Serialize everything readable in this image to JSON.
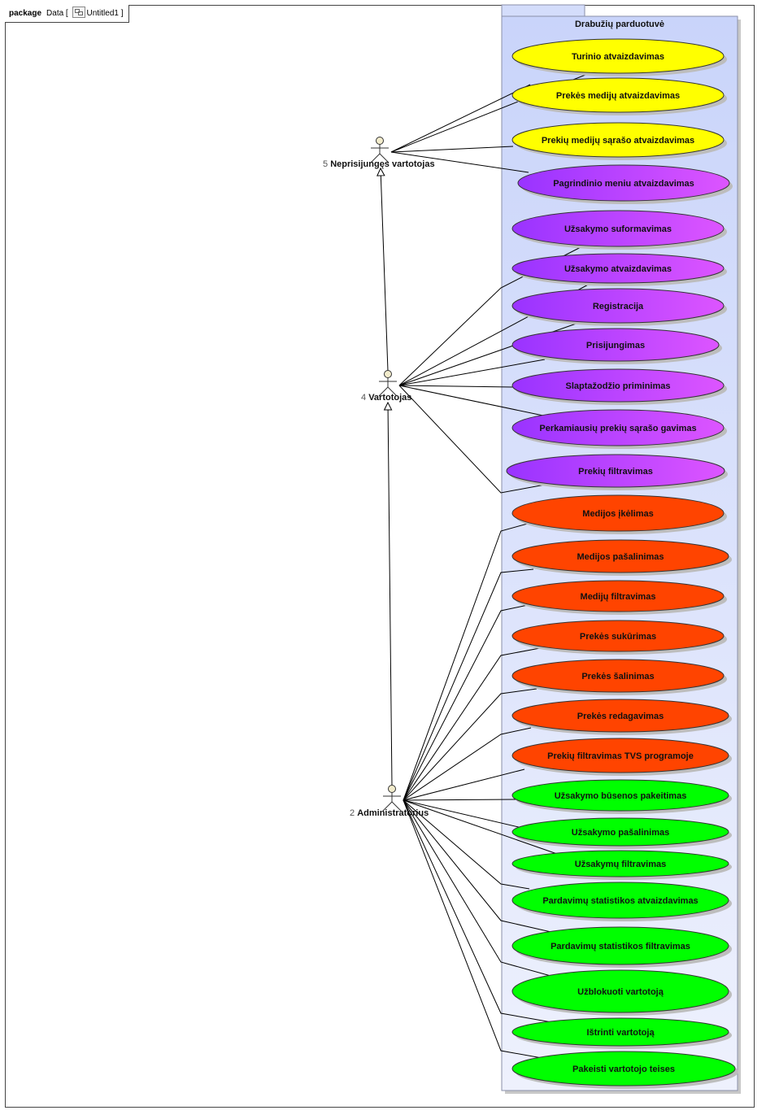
{
  "header": {
    "keyword": "package",
    "name": "Data",
    "diagram_icon": "use-case-diagram-icon",
    "diagram_name": "Untitled1"
  },
  "system": {
    "title": "Drabužių parduotuvė"
  },
  "colors": {
    "yellow": "#ffff00",
    "purple_from": "#9933ff",
    "purple_to": "#dd55ff",
    "red": "#ff4400",
    "green": "#00ff00",
    "system_bg": "#d4ddfb"
  },
  "actors": [
    {
      "id": "guest",
      "number": "5",
      "name": "Neprisijungęs vartotojas"
    },
    {
      "id": "user",
      "number": "4",
      "name": "Vartotojas"
    },
    {
      "id": "admin",
      "number": "2",
      "name": "Administratorius"
    }
  ],
  "use_cases": [
    {
      "label": "Turinio atvaizdavimas",
      "group": "yellow"
    },
    {
      "label": "Prekės medijų atvaizdavimas",
      "group": "yellow"
    },
    {
      "label": "Prekių medijų sąrašo atvaizdavimas",
      "group": "yellow"
    },
    {
      "label": "Pagrindinio meniu atvaizdavimas",
      "group": "purple"
    },
    {
      "label": "Užsakymo suformavimas",
      "group": "purple"
    },
    {
      "label": "Užsakymo atvaizdavimas",
      "group": "purple"
    },
    {
      "label": "Registracija",
      "group": "purple"
    },
    {
      "label": "Prisijungimas",
      "group": "purple"
    },
    {
      "label": "Slaptažodžio priminimas",
      "group": "purple"
    },
    {
      "label": "Perkamiausių prekių sąrašo gavimas",
      "group": "purple"
    },
    {
      "label": "Prekių filtravimas",
      "group": "purple"
    },
    {
      "label": "Medijos įkėlimas",
      "group": "red"
    },
    {
      "label": "Medijos pašalinimas",
      "group": "red"
    },
    {
      "label": "Medijų filtravimas",
      "group": "red"
    },
    {
      "label": "Prekės sukūrimas",
      "group": "red"
    },
    {
      "label": "Prekės šalinimas",
      "group": "red"
    },
    {
      "label": "Prekės redagavimas",
      "group": "red"
    },
    {
      "label": "Prekių filtravimas TVS programoje",
      "group": "red"
    },
    {
      "label": "Užsakymo būsenos pakeitimas",
      "group": "green"
    },
    {
      "label": "Užsakymo pašalinimas",
      "group": "green"
    },
    {
      "label": "Užsakymų filtravimas",
      "group": "green"
    },
    {
      "label": "Pardavimų statistikos atvaizdavimas",
      "group": "green"
    },
    {
      "label": "Pardavimų statistikos filtravimas",
      "group": "green"
    },
    {
      "label": "Užblokuoti vartotoją",
      "group": "green"
    },
    {
      "label": "Ištrinti vartotoją",
      "group": "green"
    },
    {
      "label": "Pakeisti vartotojo teises",
      "group": "green"
    }
  ],
  "associations": [
    {
      "actor": "guest",
      "use_case": 0
    },
    {
      "actor": "guest",
      "use_case": 1
    },
    {
      "actor": "guest",
      "use_case": 2
    },
    {
      "actor": "guest",
      "use_case": 3
    },
    {
      "actor": "user",
      "use_case": 4
    },
    {
      "actor": "user",
      "use_case": 5
    },
    {
      "actor": "user",
      "use_case": 6
    },
    {
      "actor": "user",
      "use_case": 7
    },
    {
      "actor": "user",
      "use_case": 8
    },
    {
      "actor": "user",
      "use_case": 9
    },
    {
      "actor": "user",
      "use_case": 10
    },
    {
      "actor": "admin",
      "use_case": 11
    },
    {
      "actor": "admin",
      "use_case": 12
    },
    {
      "actor": "admin",
      "use_case": 13
    },
    {
      "actor": "admin",
      "use_case": 14
    },
    {
      "actor": "admin",
      "use_case": 15
    },
    {
      "actor": "admin",
      "use_case": 16
    },
    {
      "actor": "admin",
      "use_case": 17
    },
    {
      "actor": "admin",
      "use_case": 18
    },
    {
      "actor": "admin",
      "use_case": 19
    },
    {
      "actor": "admin",
      "use_case": 20
    },
    {
      "actor": "admin",
      "use_case": 21
    },
    {
      "actor": "admin",
      "use_case": 22
    },
    {
      "actor": "admin",
      "use_case": 23
    },
    {
      "actor": "admin",
      "use_case": 24
    },
    {
      "actor": "admin",
      "use_case": 25
    }
  ],
  "generalizations": [
    {
      "child": "user",
      "parent": "guest"
    },
    {
      "child": "admin",
      "parent": "user"
    }
  ]
}
